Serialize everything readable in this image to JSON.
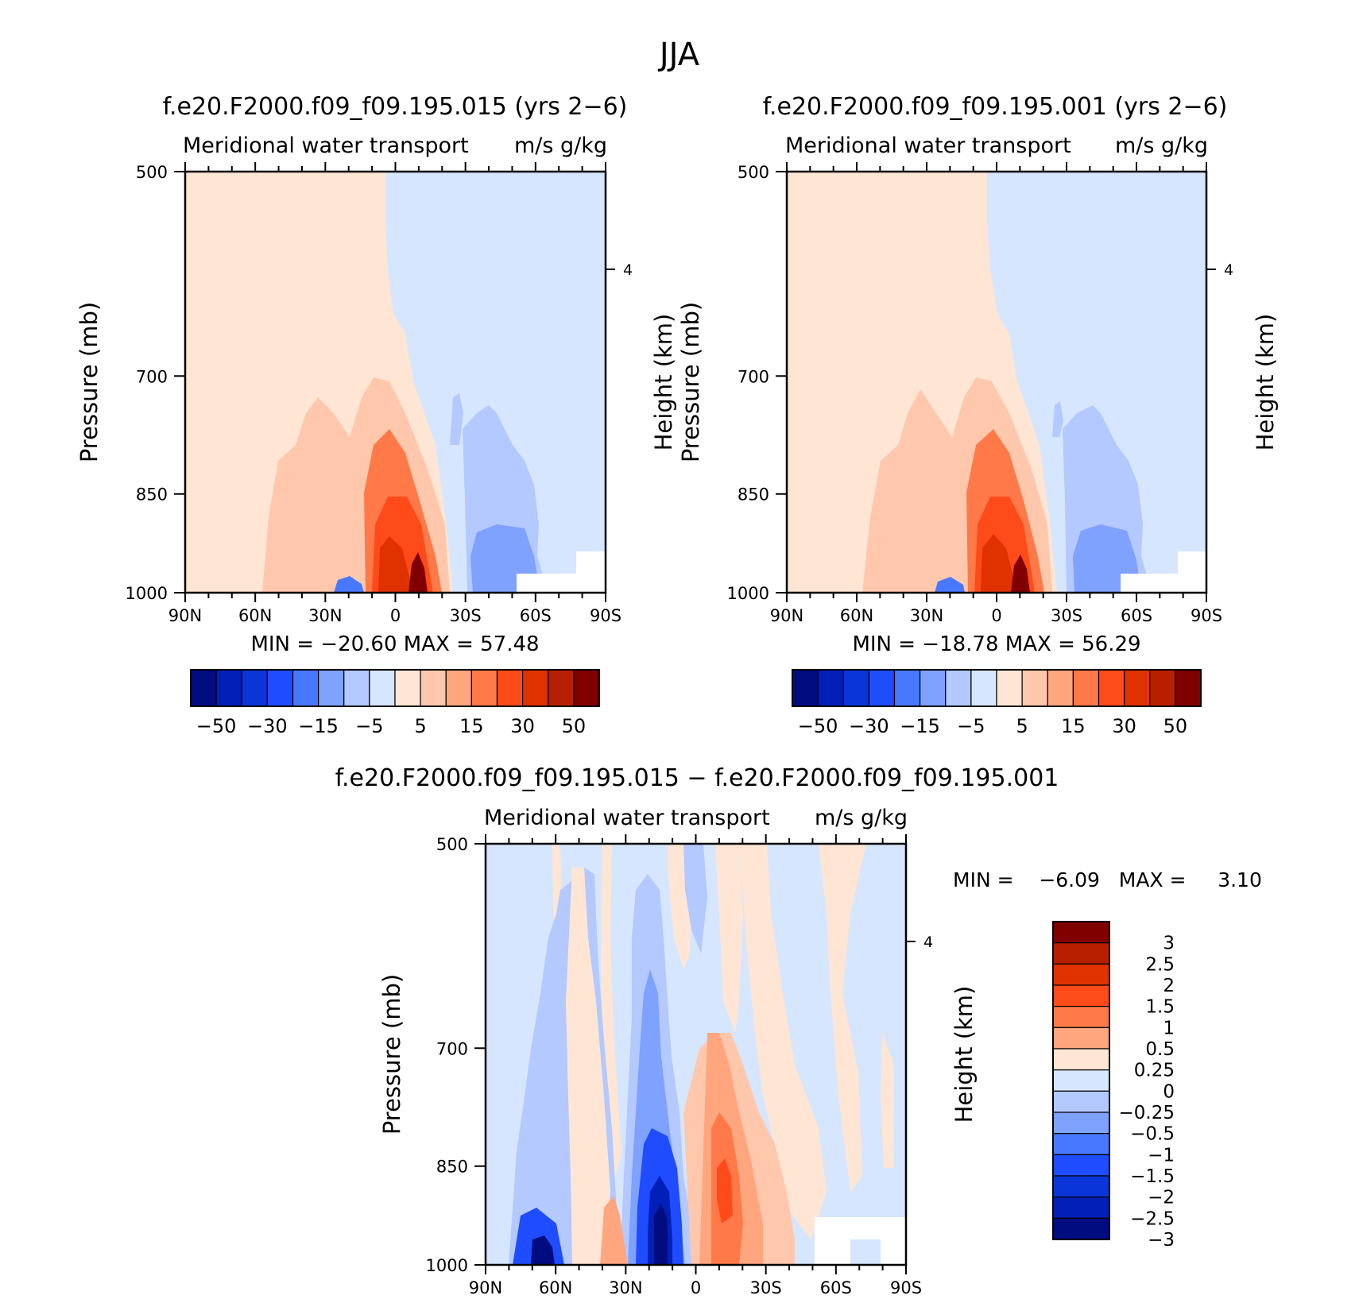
{
  "title": "JJA",
  "chart_data": [
    {
      "type": "contour",
      "title": "f.e20.F2000.f09_f09.195.015 (yrs 2−6)",
      "subtitle_left": "Meridional water transport",
      "subtitle_right": "m/s g/kg",
      "ylabel": "Pressure (mb)",
      "ylabel_right": "Height (km)",
      "x_tick_labels": [
        "90N",
        "60N",
        "30N",
        "0",
        "30S",
        "60S",
        "90S"
      ],
      "y_tick_values": [
        500,
        700,
        850,
        1000
      ],
      "y_tick_labels": [
        "500",
        "700",
        "850",
        "1000"
      ],
      "ylim": [
        500,
        1000
      ],
      "right_tick_label": "4",
      "stats_text": "MIN =  −20.60   MAX =   57.48",
      "min": -20.6,
      "max": 57.48,
      "colorbar_labels": [
        "−50",
        "−30",
        "−15",
        "−5",
        "5",
        "15",
        "30",
        "50"
      ]
    },
    {
      "type": "contour",
      "title": "f.e20.F2000.f09_f09.195.001 (yrs 2−6)",
      "subtitle_left": "Meridional water transport",
      "subtitle_right": "m/s g/kg",
      "ylabel": "Pressure (mb)",
      "ylabel_right": "Height (km)",
      "x_tick_labels": [
        "90N",
        "60N",
        "30N",
        "0",
        "30S",
        "60S",
        "90S"
      ],
      "y_tick_values": [
        500,
        700,
        850,
        1000
      ],
      "y_tick_labels": [
        "500",
        "700",
        "850",
        "1000"
      ],
      "ylim": [
        500,
        1000
      ],
      "right_tick_label": "4",
      "stats_text": "MIN =  −18.78   MAX =   56.29",
      "min": -18.78,
      "max": 56.29,
      "colorbar_labels": [
        "−50",
        "−30",
        "−15",
        "−5",
        "5",
        "15",
        "30",
        "50"
      ]
    },
    {
      "type": "contour",
      "title": "f.e20.F2000.f09_f09.195.015 − f.e20.F2000.f09_f09.195.001",
      "subtitle_left": "Meridional water transport",
      "subtitle_right": "m/s g/kg",
      "ylabel": "Pressure (mb)",
      "ylabel_right": "Height (km)",
      "x_tick_labels": [
        "90N",
        "60N",
        "30N",
        "0",
        "30S",
        "60S",
        "90S"
      ],
      "y_tick_values": [
        500,
        700,
        850,
        1000
      ],
      "y_tick_labels": [
        "500",
        "700",
        "850",
        "1000"
      ],
      "ylim": [
        500,
        1000
      ],
      "right_tick_label": "4",
      "stats_text": "MIN =    −6.09   MAX =     3.10",
      "min": -6.09,
      "max": 3.1,
      "colorbar_labels": [
        "3",
        "2.5",
        "2",
        "1.5",
        "1",
        "0.5",
        "0.25",
        "0",
        "−0.25",
        "−0.5",
        "−1",
        "−1.5",
        "−2",
        "−2.5",
        "−3"
      ]
    }
  ],
  "colors": {
    "abs_scale": [
      "#000c80",
      "#0020b8",
      "#0a36d9",
      "#1f4cff",
      "#4878ff",
      "#7fa1ff",
      "#b3c9ff",
      "#d6e6ff",
      "#ffe6d4",
      "#ffc8ad",
      "#ffa67f",
      "#ff7a48",
      "#ff4a1a",
      "#e03200",
      "#b81f00",
      "#800000"
    ],
    "diff_scale": [
      "#800000",
      "#b81f00",
      "#e03200",
      "#ff4a1a",
      "#ff7a48",
      "#ffa67f",
      "#ffe6d4",
      "#d6e6ff",
      "#b3c9ff",
      "#7fa1ff",
      "#4878ff",
      "#1f4cff",
      "#0a36d9",
      "#0020b8",
      "#000c80"
    ]
  }
}
